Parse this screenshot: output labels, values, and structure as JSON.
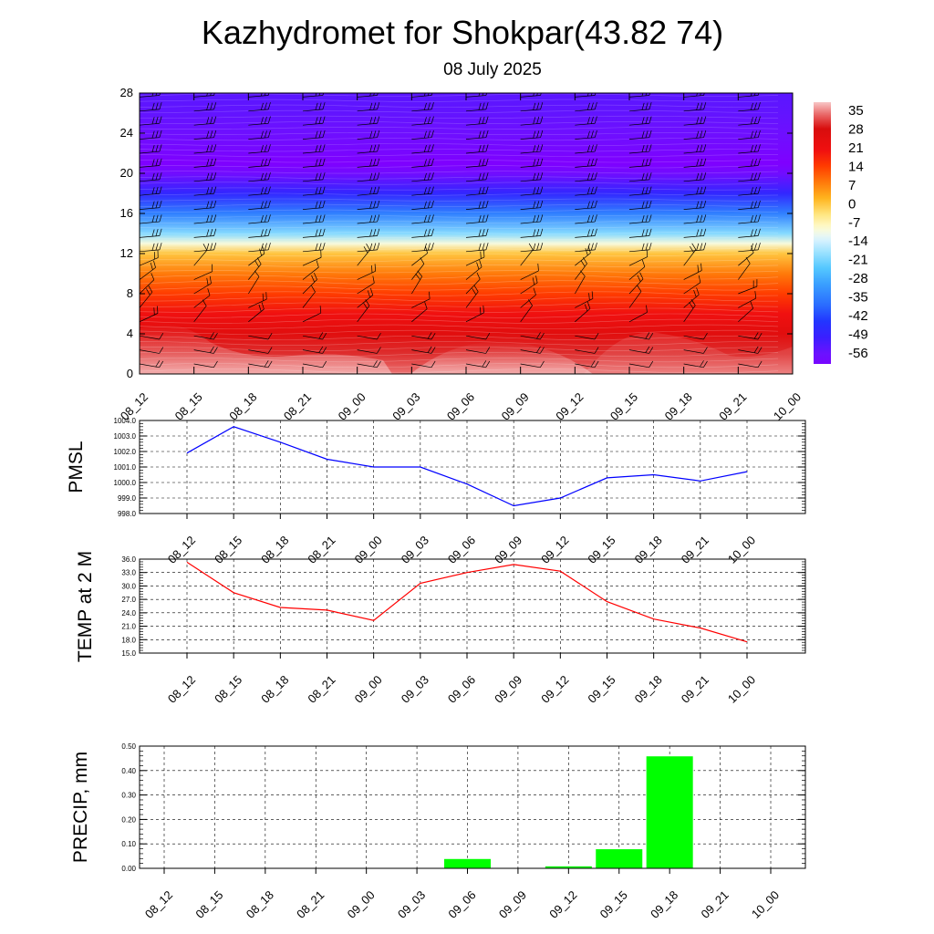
{
  "title": "Kazhydromet for Shokpar(43.82 74)",
  "subtitle": "08 July 2025",
  "time_labels": [
    "08_12",
    "08_15",
    "08_18",
    "08_21",
    "09_00",
    "09_03",
    "09_06",
    "09_09",
    "09_12",
    "09_15",
    "09_18",
    "09_21",
    "10_00"
  ],
  "colorbar": {
    "labels": [
      "35",
      "28",
      "21",
      "14",
      "7",
      "0",
      "-7",
      "-14",
      "-21",
      "-28",
      "-35",
      "-42",
      "-49",
      "-56"
    ]
  },
  "chart_data": [
    {
      "type": "heatmap",
      "title": "",
      "xlabel": "",
      "ylabel": "",
      "x": [
        "08_12",
        "08_15",
        "08_18",
        "08_21",
        "09_00",
        "09_03",
        "09_06",
        "09_09",
        "09_12",
        "09_15",
        "09_18",
        "09_21",
        "10_00"
      ],
      "yticks": [
        "0",
        "4",
        "8",
        "12",
        "16",
        "20",
        "24",
        "28"
      ],
      "ylim": [
        0,
        28
      ],
      "colorbar_range": [
        -60,
        38
      ],
      "profile": {
        "y": [
          0,
          2,
          4,
          6,
          8,
          10,
          12,
          13,
          14,
          16,
          18,
          20,
          21,
          22,
          24,
          26,
          28
        ],
        "value": [
          34,
          30,
          25,
          20,
          14,
          8,
          0,
          -10,
          -20,
          -35,
          -48,
          -58,
          -62,
          -60,
          -57,
          -55,
          -54
        ]
      },
      "overlays": "wind barbs and temperature contours"
    },
    {
      "type": "line",
      "ylabel": "PMSL",
      "categories": [
        "08_12",
        "08_15",
        "08_18",
        "08_21",
        "09_00",
        "09_03",
        "09_06",
        "09_09",
        "09_12",
        "09_15",
        "09_18",
        "09_21",
        "10_00"
      ],
      "values": [
        1001.9,
        1003.6,
        1002.6,
        1001.5,
        1001.0,
        1001.0,
        999.9,
        998.5,
        999.0,
        1000.3,
        1000.5,
        1000.1,
        1000.7
      ],
      "ylim": [
        998.0,
        1004.0
      ],
      "yticks": [
        "998.0",
        "999.0",
        "1000.0",
        "1001.0",
        "1002.0",
        "1003.0",
        "1004.0"
      ],
      "color": "#0000ff",
      "grid": true
    },
    {
      "type": "line",
      "ylabel": "TEMP at 2 M",
      "categories": [
        "08_12",
        "08_15",
        "08_18",
        "08_21",
        "09_00",
        "09_03",
        "09_06",
        "09_09",
        "09_12",
        "09_15",
        "09_18",
        "09_21",
        "10_00"
      ],
      "values": [
        35.3,
        28.5,
        25.2,
        24.6,
        22.3,
        30.6,
        33.0,
        34.8,
        33.3,
        26.5,
        22.6,
        20.6,
        17.5
      ],
      "ylim": [
        15.0,
        36.0
      ],
      "yticks": [
        "15.0",
        "18.0",
        "21.0",
        "24.0",
        "27.0",
        "30.0",
        "33.0",
        "36.0"
      ],
      "color": "#ff0000",
      "grid": true
    },
    {
      "type": "bar",
      "ylabel": "PRECIP, mm",
      "categories": [
        "08_12",
        "08_15",
        "08_18",
        "08_21",
        "09_00",
        "09_03",
        "09_06",
        "09_09",
        "09_12",
        "09_15",
        "09_18",
        "09_21",
        "10_00"
      ],
      "values": [
        0,
        0,
        0,
        0,
        0,
        0,
        0.04,
        0,
        0.01,
        0.08,
        0.46,
        0,
        0
      ],
      "ylim": [
        0,
        0.5
      ],
      "yticks": [
        "0.00",
        "0.10",
        "0.20",
        "0.30",
        "0.40",
        "0.50"
      ],
      "color": "#00ff00",
      "grid": true
    }
  ]
}
